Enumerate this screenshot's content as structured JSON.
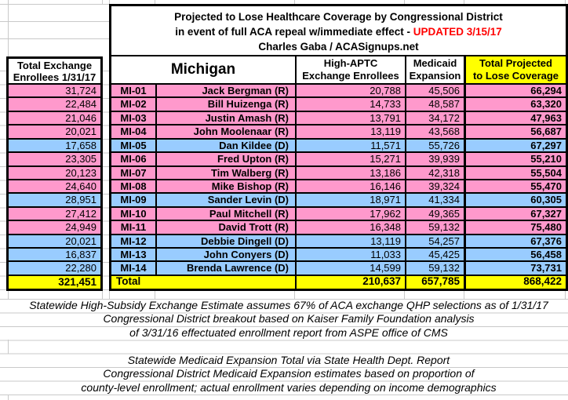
{
  "title": {
    "line1": "Projected to Lose Healthcare Coverage by Congressional District",
    "line2_prefix": "in event of full ACA repeal w/immediate effect - ",
    "line2_updated": "UPDATED 3/15/17",
    "line3": "Charles Gaba / ACASignups.net"
  },
  "left_column": {
    "header_line1": "Total Exchange",
    "header_line2": "Enrollees 1/31/17"
  },
  "main_header": {
    "state": "Michigan",
    "high_aptc_line1": "High-APTC",
    "high_aptc_line2": "Exchange Enrollees",
    "medicaid_line1": "Medicaid",
    "medicaid_line2": "Expansion",
    "total_line1": "Total Projected",
    "total_line2": "to Lose Coverage"
  },
  "rows": [
    {
      "district": "MI-01",
      "rep": "Jack Bergman (R)",
      "party": "R",
      "exchange_enrollees": "31,724",
      "high_aptc": "20,788",
      "medicaid": "45,506",
      "total": "66,294"
    },
    {
      "district": "MI-02",
      "rep": "Bill Huizenga (R)",
      "party": "R",
      "exchange_enrollees": "22,484",
      "high_aptc": "14,733",
      "medicaid": "48,587",
      "total": "63,320"
    },
    {
      "district": "MI-03",
      "rep": "Justin Amash (R)",
      "party": "R",
      "exchange_enrollees": "21,046",
      "high_aptc": "13,791",
      "medicaid": "34,172",
      "total": "47,963"
    },
    {
      "district": "MI-04",
      "rep": "John Moolenaar (R)",
      "party": "R",
      "exchange_enrollees": "20,021",
      "high_aptc": "13,119",
      "medicaid": "43,568",
      "total": "56,687"
    },
    {
      "district": "MI-05",
      "rep": "Dan Kildee (D)",
      "party": "D",
      "exchange_enrollees": "17,658",
      "high_aptc": "11,571",
      "medicaid": "55,726",
      "total": "67,297"
    },
    {
      "district": "MI-06",
      "rep": "Fred Upton (R)",
      "party": "R",
      "exchange_enrollees": "23,305",
      "high_aptc": "15,271",
      "medicaid": "39,939",
      "total": "55,210"
    },
    {
      "district": "MI-07",
      "rep": "Tim Walberg (R)",
      "party": "R",
      "exchange_enrollees": "20,123",
      "high_aptc": "13,186",
      "medicaid": "42,318",
      "total": "55,504"
    },
    {
      "district": "MI-08",
      "rep": "Mike Bishop (R)",
      "party": "R",
      "exchange_enrollees": "24,640",
      "high_aptc": "16,146",
      "medicaid": "39,324",
      "total": "55,470"
    },
    {
      "district": "MI-09",
      "rep": "Sander Levin (D)",
      "party": "D",
      "exchange_enrollees": "28,951",
      "high_aptc": "18,971",
      "medicaid": "41,334",
      "total": "60,305"
    },
    {
      "district": "MI-10",
      "rep": "Paul Mitchell (R)",
      "party": "R",
      "exchange_enrollees": "27,412",
      "high_aptc": "17,962",
      "medicaid": "49,365",
      "total": "67,327"
    },
    {
      "district": "MI-11",
      "rep": "David Trott (R)",
      "party": "R",
      "exchange_enrollees": "24,949",
      "high_aptc": "16,348",
      "medicaid": "59,132",
      "total": "75,480"
    },
    {
      "district": "MI-12",
      "rep": "Debbie Dingell (D)",
      "party": "D",
      "exchange_enrollees": "20,021",
      "high_aptc": "13,119",
      "medicaid": "54,257",
      "total": "67,376"
    },
    {
      "district": "MI-13",
      "rep": "John Conyers (D)",
      "party": "D",
      "exchange_enrollees": "16,837",
      "high_aptc": "11,033",
      "medicaid": "45,425",
      "total": "56,458"
    },
    {
      "district": "MI-14",
      "rep": "Brenda Lawrence (D)",
      "party": "D",
      "exchange_enrollees": "22,280",
      "high_aptc": "14,599",
      "medicaid": "59,132",
      "total": "73,731"
    }
  ],
  "totals": {
    "label": "Total",
    "exchange_enrollees": "321,451",
    "high_aptc": "210,637",
    "medicaid": "657,785",
    "total": "868,422"
  },
  "footnotes": [
    "Statewide High-Subsidy Exchange Estimate assumes 67% of ACA exchange QHP selections as of 1/31/17",
    "Congressional District breakout based on Kaiser Family Foundation analysis",
    "of 3/31/16 effectuated enrollment report from ASPE office of CMS",
    "",
    "Statewide Medicaid Expansion Total via State Health Dept. Report",
    "Congressional District Medicaid Expansion estimates based on proportion of",
    "county-level enrollment; actual enrollment varies depending on income demographics"
  ],
  "colors": {
    "republican_row": "#FF99CC",
    "democrat_row": "#99CCFF",
    "total_row": "#FFFF00",
    "total_column_header": "#FFFF00",
    "updated_text": "#FF0000",
    "cell_border": "#000000",
    "gridline": "#C9C9C9"
  }
}
